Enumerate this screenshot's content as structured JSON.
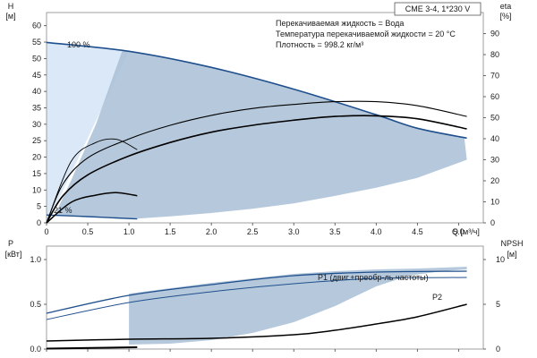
{
  "chart_data": [
    {
      "type": "line",
      "id": "top",
      "title_box": "CME 3-4, 1*230 V",
      "annotations": [
        "Перекачиваемая жидкость = Вода",
        "Температура перекачиваемой жидкости = 20 °C",
        "Плотность = 998.2 кг/м³"
      ],
      "y_left_label": [
        "H",
        "[м]"
      ],
      "y_right_label": [
        "eta",
        "[%]"
      ],
      "x_label": "Q [м³/ч]",
      "x_ticks": [
        "0",
        "0.5",
        "1.0",
        "1.5",
        "2.0",
        "2.5",
        "3.0",
        "3.5",
        "4.0",
        "4.5",
        "5.0"
      ],
      "y_left_ticks": [
        "0",
        "5",
        "10",
        "15",
        "20",
        "25",
        "30",
        "35",
        "40",
        "45",
        "50",
        "55",
        "60"
      ],
      "y_right_ticks": [
        "0",
        "10",
        "20",
        "30",
        "40",
        "50",
        "60",
        "70",
        "80",
        "90"
      ],
      "xlim": [
        0,
        5.3
      ],
      "ylim_left": [
        0,
        64
      ],
      "ylim_right": [
        0,
        100
      ],
      "speed_labels": [
        "100 %",
        "21 %"
      ],
      "colors": {
        "envelope": "#a9bfd6",
        "light_zone": "#dbe8f7",
        "pump_curve": "#1f4f8c",
        "efficiency": "#000000"
      },
      "series": [
        {
          "role": "head_100",
          "axis": "left",
          "color": "#1f4f8c",
          "x": [
            0,
            1,
            2,
            3,
            4,
            4.5,
            5.1
          ],
          "y": [
            54.9,
            52.2,
            47.3,
            40.7,
            32.9,
            28.8,
            25.8
          ]
        },
        {
          "role": "head_21",
          "axis": "left",
          "color": "#1f4f8c",
          "x": [
            0,
            0.5,
            1.1
          ],
          "y": [
            2.4,
            1.9,
            1.2
          ]
        },
        {
          "axis": "right",
          "color": "#000000",
          "x": [
            0,
            0.2,
            0.5,
            1,
            1.5,
            2,
            2.5,
            3,
            3.5,
            4,
            4.5,
            5.1
          ],
          "y": [
            0,
            18.5,
            30.9,
            39.9,
            46.4,
            51.1,
            54.4,
            56.3,
            57.6,
            57.6,
            55.7,
            50.6
          ]
        },
        {
          "axis": "right",
          "color": "#000000",
          "x": [
            0,
            0.2,
            0.5,
            1,
            1.5,
            2,
            2.5,
            3,
            3.5,
            4,
            4.5,
            5.1
          ],
          "y": [
            0,
            12.9,
            22.8,
            31.8,
            38.2,
            43.1,
            46.4,
            48.8,
            50.6,
            50.9,
            49.5,
            44.7
          ]
        },
        {
          "axis": "right",
          "color": "#000000",
          "x": [
            0,
            0.3,
            0.6,
            0.85,
            1.1
          ],
          "y": [
            0,
            29.3,
            38.2,
            39.7,
            34.8
          ]
        },
        {
          "axis": "right",
          "color": "#000000",
          "x": [
            0,
            0.3,
            0.6,
            0.85,
            1.1
          ],
          "y": [
            0,
            9.8,
            13.2,
            14.4,
            12.9
          ]
        }
      ]
    },
    {
      "type": "line",
      "id": "bottom",
      "y_left_label": [
        "P",
        "[кВт]"
      ],
      "y_right_label": [
        "NPSH",
        "[м]"
      ],
      "y_left_ticks": [
        "0.0",
        "0.5",
        "1.0"
      ],
      "y_right_ticks": [
        "0",
        "5",
        "10"
      ],
      "xlim": [
        0,
        5.3
      ],
      "ylim_left": [
        0,
        1.15
      ],
      "ylim_right": [
        0,
        11.5
      ],
      "series_labels": [
        "P1 (двиг.+преобр-ль частоты)",
        "P2"
      ],
      "colors": {
        "envelope": "#a9bfd6",
        "p1": "#1f4f8c",
        "p2": "#1f4f8c",
        "npsh": "#000000"
      },
      "series": [
        {
          "name": "P1 (двиг.+преобр-ль частоты)",
          "axis": "left",
          "color": "#1f4f8c",
          "x": [
            0,
            1,
            2,
            3,
            4,
            5.1
          ],
          "y": [
            0.4,
            0.6,
            0.72,
            0.82,
            0.86,
            0.87
          ]
        },
        {
          "name": "P2",
          "axis": "left",
          "color": "#1f4f8c",
          "x": [
            0,
            1,
            2,
            3,
            4,
            5.1
          ],
          "y": [
            0.33,
            0.52,
            0.64,
            0.73,
            0.79,
            0.8
          ]
        },
        {
          "role": "npsh",
          "axis": "right",
          "color": "#000000",
          "x": [
            0,
            1,
            2,
            3,
            3.5,
            4,
            4.5,
            5.1
          ],
          "y": [
            0.9,
            1.1,
            1.2,
            1.6,
            2.1,
            2.8,
            3.6,
            5
          ]
        },
        {
          "role": "p1_21",
          "axis": "left",
          "color": "#000000",
          "x": [
            0,
            1.1
          ],
          "y": [
            0.005,
            0.02
          ]
        }
      ]
    }
  ]
}
